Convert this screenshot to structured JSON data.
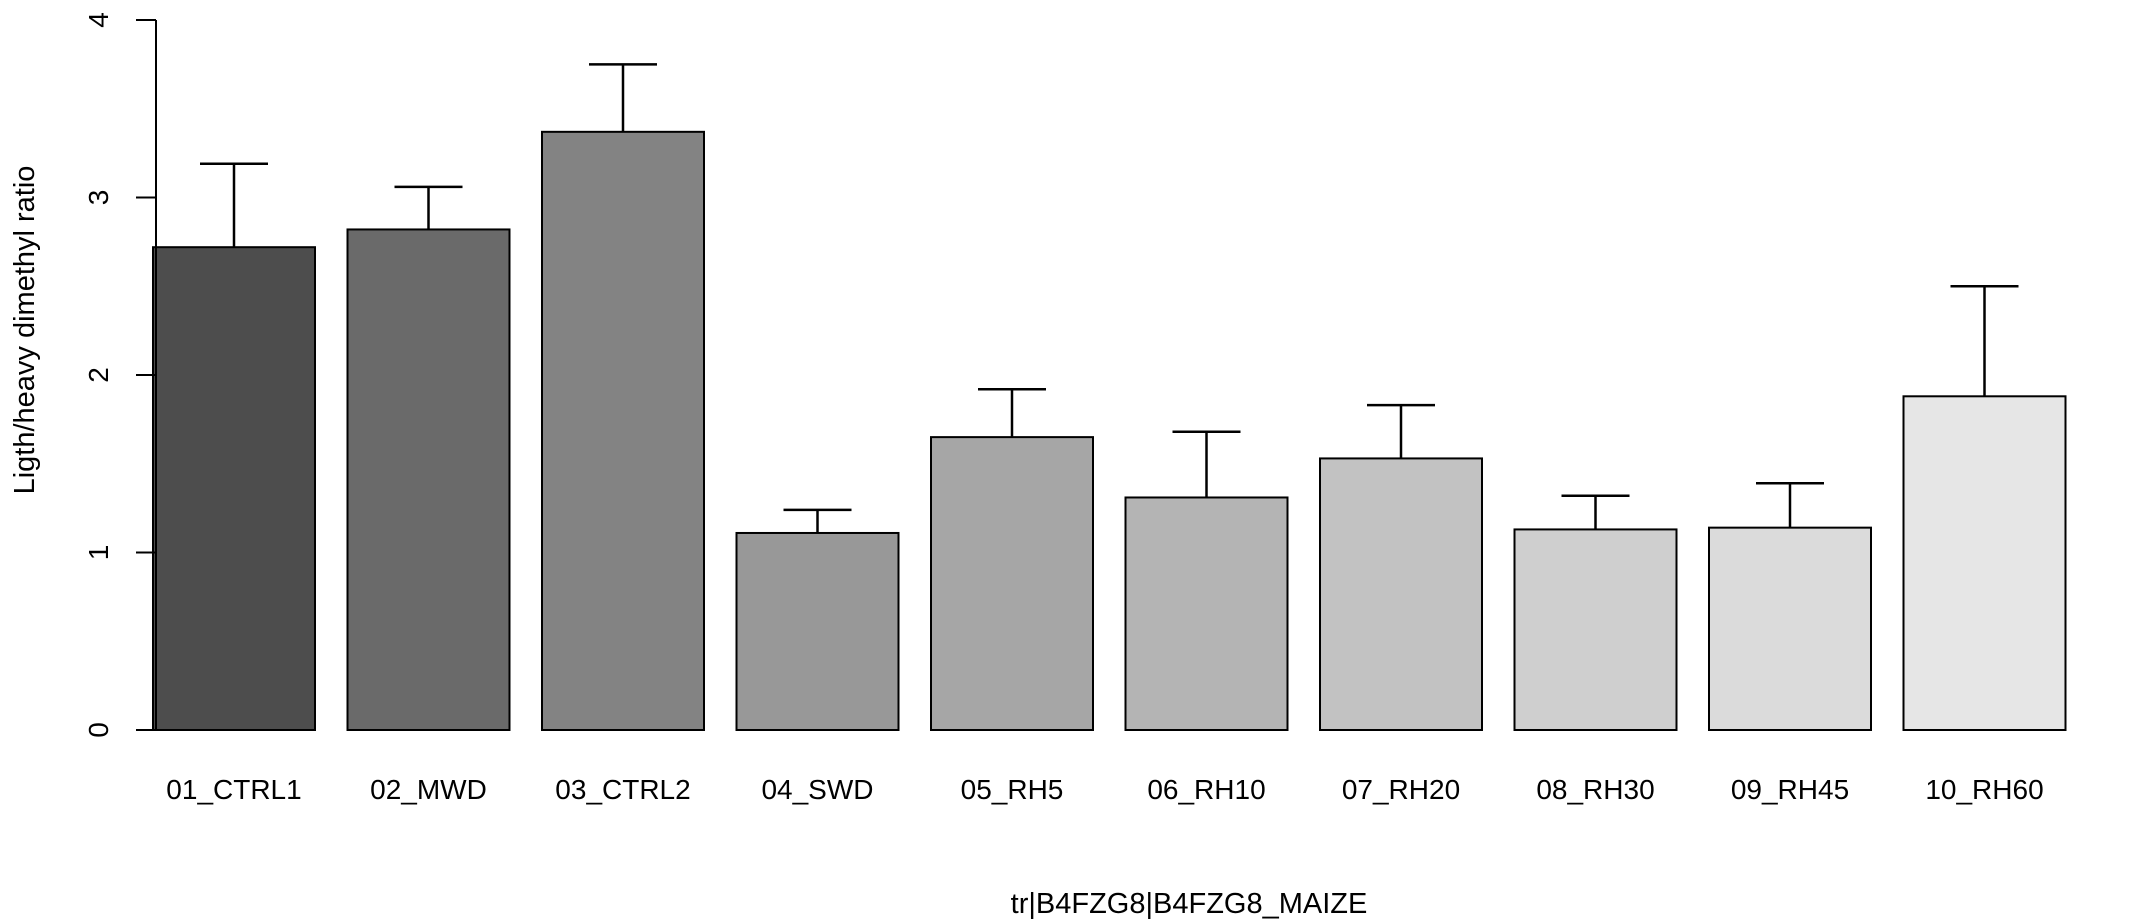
{
  "chart_data": {
    "type": "bar",
    "title": "",
    "xlabel": "tr|B4FZG8|B4FZG8_MAIZE",
    "ylabel": "Ligth/heavy dimethyl ratio",
    "ylim": [
      0,
      4
    ],
    "yticks": [
      "0",
      "1",
      "2",
      "3",
      "4"
    ],
    "grid": false,
    "legend": "none",
    "error_bars": true,
    "categories": [
      "01_CTRL1",
      "02_MWD",
      "03_CTRL2",
      "04_SWD",
      "05_RH5",
      "06_RH10",
      "07_RH20",
      "08_RH30",
      "09_RH45",
      "10_RH60"
    ],
    "values": [
      2.72,
      2.82,
      3.37,
      1.11,
      1.65,
      1.31,
      1.53,
      1.13,
      1.14,
      1.88
    ],
    "error_upper": [
      3.19,
      3.06,
      3.75,
      1.24,
      1.92,
      1.68,
      1.83,
      1.32,
      1.39,
      2.5
    ],
    "colors": [
      "#4d4d4d",
      "#6a6a6a",
      "#838383",
      "#989898",
      "#a6a6a6",
      "#b4b4b4",
      "#c2c2c2",
      "#cfcfcf",
      "#dbdbdb",
      "#e6e6e6"
    ]
  }
}
